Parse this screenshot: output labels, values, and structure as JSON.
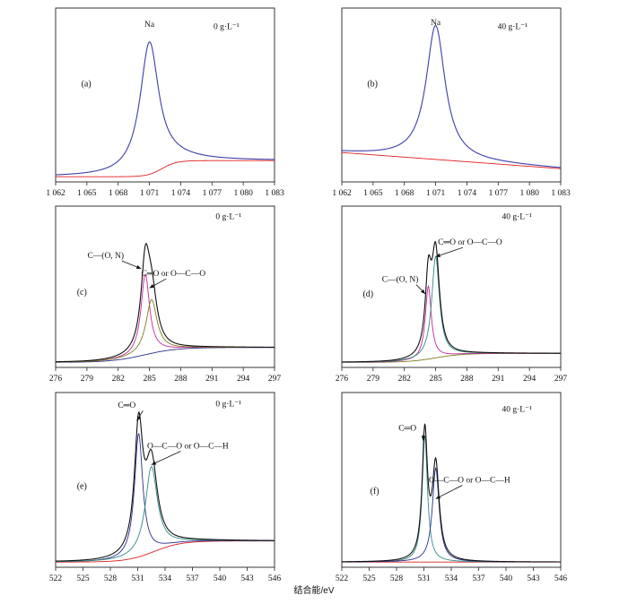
{
  "figure": {
    "xlabel": "结合能/eV"
  },
  "colors": {
    "envelope": "#111111",
    "background": "#e21f1f",
    "fit_blue": "#2a2e8c",
    "fit_magenta": "#c2279a",
    "fit_olive": "#7d7c1e",
    "fit_teal": "#2e8b86",
    "na_envelope": "#3b3fa8"
  },
  "chart_data": [
    {
      "id": "a",
      "label": "(a)",
      "type": "line",
      "concentration": "0 g·L⁻¹",
      "xlim": [
        1062,
        1083
      ],
      "xticks": [
        1062,
        1065,
        1068,
        1071,
        1074,
        1077,
        1080,
        1083
      ],
      "xtick_labels": [
        "1 062",
        "1 065",
        "1 068",
        "1 071",
        "1 074",
        "1 077",
        "1 080",
        "1 083"
      ],
      "yrange": [
        0,
        100
      ],
      "annotations": [
        {
          "text": "Na",
          "x": 1071.0,
          "y": 94,
          "arrow": false
        }
      ],
      "series": [
        {
          "name": "Na 1s envelope",
          "color": "#3b3fa8",
          "kind": "envelope",
          "peaks": [
            {
              "c": 1071.0,
              "h": 82,
              "w": 1.1
            }
          ],
          "bg": {
            "a": 1,
            "b": 10,
            "c": 1072.2,
            "s": 0.7
          }
        },
        {
          "name": "background",
          "color": "#e21f1f",
          "kind": "background",
          "peaks": [],
          "bg": {
            "a": 1,
            "b": 10,
            "c": 1072.2,
            "s": 0.7
          }
        }
      ]
    },
    {
      "id": "b",
      "label": "(b)",
      "type": "line",
      "concentration": "40 g·L⁻¹",
      "xlim": [
        1062,
        1083
      ],
      "xticks": [
        1062,
        1065,
        1068,
        1071,
        1074,
        1077,
        1080,
        1083
      ],
      "xtick_labels": [
        "1 062",
        "1 065",
        "1 068",
        "1 071",
        "1 074",
        "1 077",
        "1 080",
        "1 083"
      ],
      "yrange": [
        0,
        100
      ],
      "annotations": [
        {
          "text": "Na",
          "x": 1071.0,
          "y": 95,
          "arrow": false
        }
      ],
      "series": [
        {
          "name": "Na 1s envelope",
          "color": "#3b3fa8",
          "kind": "envelope",
          "peaks": [
            {
              "c": 1071.0,
              "h": 83,
              "w": 1.1
            }
          ],
          "bg": {
            "linear": [
              16,
              6
            ]
          }
        },
        {
          "name": "background",
          "color": "#e21f1f",
          "kind": "background",
          "peaks": [],
          "bg": {
            "linear": [
              16,
              6
            ]
          }
        }
      ]
    },
    {
      "id": "c",
      "label": "(c)",
      "type": "line",
      "concentration": "0 g·L⁻¹",
      "xlim": [
        276,
        297
      ],
      "xticks": [
        276,
        279,
        282,
        285,
        288,
        291,
        294,
        297
      ],
      "xtick_labels": [
        "276",
        "279",
        "282",
        "285",
        "288",
        "291",
        "294",
        "297"
      ],
      "yrange": [
        0,
        100
      ],
      "annotations": [
        {
          "text": "C—(O, N)",
          "x": 280.8,
          "y": 71,
          "arrow": true,
          "ax": 284.2,
          "ay": 64
        },
        {
          "text": "C═O or O—C—O",
          "x": 287.3,
          "y": 59,
          "arrow": true,
          "ax": 285.0,
          "ay": 51
        }
      ],
      "series": [
        {
          "name": "envelope",
          "color": "#111111",
          "kind": "envelope",
          "peaks": [
            {
              "c": 284.6,
              "h": 54,
              "w": 0.5
            },
            {
              "c": 285.2,
              "h": 36,
              "w": 0.65
            }
          ],
          "bg": {
            "a": 1,
            "b": 10,
            "c": 284.5,
            "s": 1.6
          }
        },
        {
          "name": "C—(O, N)",
          "color": "#c2279a",
          "kind": "component",
          "peaks": [
            {
              "c": 284.6,
              "h": 54,
              "w": 0.5
            }
          ],
          "bg": {
            "a": 1,
            "b": 10,
            "c": 284.5,
            "s": 1.6
          }
        },
        {
          "name": "C═O or O—C—O",
          "color": "#7d7c1e",
          "kind": "component",
          "peaks": [
            {
              "c": 285.2,
              "h": 36,
              "w": 0.65
            }
          ],
          "bg": {
            "a": 1,
            "b": 10,
            "c": 284.5,
            "s": 1.6
          }
        },
        {
          "name": "background",
          "color": "#2a2e8c",
          "kind": "background",
          "peaks": [],
          "bg": {
            "a": 1,
            "b": 10,
            "c": 284.5,
            "s": 1.6
          }
        }
      ]
    },
    {
      "id": "d",
      "label": "(d)",
      "type": "line",
      "concentration": "40 g·L⁻¹",
      "xlim": [
        276,
        297
      ],
      "xticks": [
        276,
        279,
        282,
        285,
        288,
        291,
        294,
        297
      ],
      "xtick_labels": [
        "276",
        "279",
        "282",
        "285",
        "288",
        "291",
        "294",
        "297"
      ],
      "yrange": [
        0,
        100
      ],
      "annotations": [
        {
          "text": "C═O or O—C—O",
          "x": 288.3,
          "y": 80,
          "arrow": true,
          "ax": 285.0,
          "ay": 72
        },
        {
          "text": "C—(O, N)",
          "x": 281.6,
          "y": 55,
          "arrow": true,
          "ax": 284.0,
          "ay": 47
        }
      ],
      "series": [
        {
          "name": "envelope",
          "color": "#111111",
          "kind": "envelope",
          "peaks": [
            {
              "c": 284.3,
              "h": 49,
              "w": 0.35
            },
            {
              "c": 285.0,
              "h": 68,
              "w": 0.45
            }
          ],
          "bg": {
            "a": 1,
            "b": 6,
            "c": 285.0,
            "s": 1.3
          }
        },
        {
          "name": "C—(O, N)",
          "color": "#c2279a",
          "kind": "component",
          "peaks": [
            {
              "c": 284.3,
              "h": 49,
              "w": 0.35
            }
          ],
          "bg": {
            "a": 1,
            "b": 6,
            "c": 285.0,
            "s": 1.3
          }
        },
        {
          "name": "C═O or O—C—O",
          "color": "#2e8b86",
          "kind": "component",
          "peaks": [
            {
              "c": 285.0,
              "h": 68,
              "w": 0.45
            }
          ],
          "bg": {
            "a": 1,
            "b": 6,
            "c": 285.0,
            "s": 1.3
          }
        },
        {
          "name": "background",
          "color": "#7d7c1e",
          "kind": "background",
          "peaks": [],
          "bg": {
            "a": 1,
            "b": 6,
            "c": 285.0,
            "s": 1.3
          }
        }
      ]
    },
    {
      "id": "e",
      "label": "(e)",
      "type": "line",
      "concentration": "0 g·L⁻¹",
      "xlim": [
        522,
        546
      ],
      "xticks": [
        522,
        525,
        528,
        531,
        534,
        537,
        540,
        543,
        546
      ],
      "xtick_labels": [
        "522",
        "525",
        "528",
        "531",
        "534",
        "537",
        "540",
        "543",
        "546"
      ],
      "yrange": [
        0,
        100
      ],
      "annotations": [
        {
          "text": "C═O",
          "x": 529.8,
          "y": 96,
          "arrow": true,
          "ax": 530.9,
          "ay": 88
        },
        {
          "text": "O—C—O or O—C—H",
          "x": 536.5,
          "y": 71,
          "arrow": true,
          "ax": 532.5,
          "ay": 61
        }
      ],
      "series": [
        {
          "name": "envelope",
          "color": "#111111",
          "kind": "envelope",
          "peaks": [
            {
              "c": 531.1,
              "h": 76,
              "w": 0.55
            },
            {
              "c": 532.5,
              "h": 53,
              "w": 0.8
            }
          ],
          "bg": {
            "a": 1,
            "b": 13,
            "c": 532.8,
            "s": 1.5
          }
        },
        {
          "name": "C═O",
          "color": "#2a2e8c",
          "kind": "component",
          "peaks": [
            {
              "c": 531.1,
              "h": 76,
              "w": 0.55
            }
          ],
          "bg": {
            "a": 1,
            "b": 13,
            "c": 532.8,
            "s": 1.5
          }
        },
        {
          "name": "O—C—O or O—C—H",
          "color": "#2e8b86",
          "kind": "component",
          "peaks": [
            {
              "c": 532.5,
              "h": 53,
              "w": 0.8
            }
          ],
          "bg": {
            "a": 1,
            "b": 13,
            "c": 532.8,
            "s": 1.5
          }
        },
        {
          "name": "background",
          "color": "#e21f1f",
          "kind": "background",
          "peaks": [],
          "bg": {
            "a": 1,
            "b": 13,
            "c": 532.8,
            "s": 1.5
          }
        }
      ]
    },
    {
      "id": "f",
      "label": "(f)",
      "type": "line",
      "concentration": "40 g·L⁻¹",
      "xlim": [
        522,
        546
      ],
      "xticks": [
        522,
        525,
        528,
        531,
        534,
        537,
        540,
        543,
        546
      ],
      "xtick_labels": [
        "522",
        "525",
        "528",
        "531",
        "534",
        "537",
        "540",
        "543",
        "546"
      ],
      "yrange": [
        0,
        100
      ],
      "annotations": [
        {
          "text": "C═O",
          "x": 529.2,
          "y": 82,
          "arrow": true,
          "ax": 530.9,
          "ay": 76
        },
        {
          "text": "O—C—O or O—C—H",
          "x": 536.0,
          "y": 50,
          "arrow": true,
          "ax": 532.3,
          "ay": 40
        }
      ],
      "series": [
        {
          "name": "envelope",
          "color": "#111111",
          "kind": "envelope",
          "peaks": [
            {
              "c": 531.1,
              "h": 78,
              "w": 0.35
            },
            {
              "c": 532.3,
              "h": 58,
              "w": 0.45
            }
          ],
          "bg": {
            "a": 1,
            "b": 0,
            "c": 532,
            "s": 1
          }
        },
        {
          "name": "C═O",
          "color": "#2e8b86",
          "kind": "component",
          "peaks": [
            {
              "c": 531.1,
              "h": 78,
              "w": 0.35
            }
          ],
          "bg": {
            "a": 1,
            "b": 0,
            "c": 532,
            "s": 1
          }
        },
        {
          "name": "O—C—O or O—C—H",
          "color": "#2a2e8c",
          "kind": "component",
          "peaks": [
            {
              "c": 532.3,
              "h": 58,
              "w": 0.45
            }
          ],
          "bg": {
            "a": 1,
            "b": 0,
            "c": 532,
            "s": 1
          }
        },
        {
          "name": "background",
          "color": "#e21f1f",
          "kind": "background",
          "peaks": [],
          "bg": {
            "a": 1,
            "b": 0,
            "c": 532,
            "s": 1
          }
        }
      ]
    }
  ]
}
